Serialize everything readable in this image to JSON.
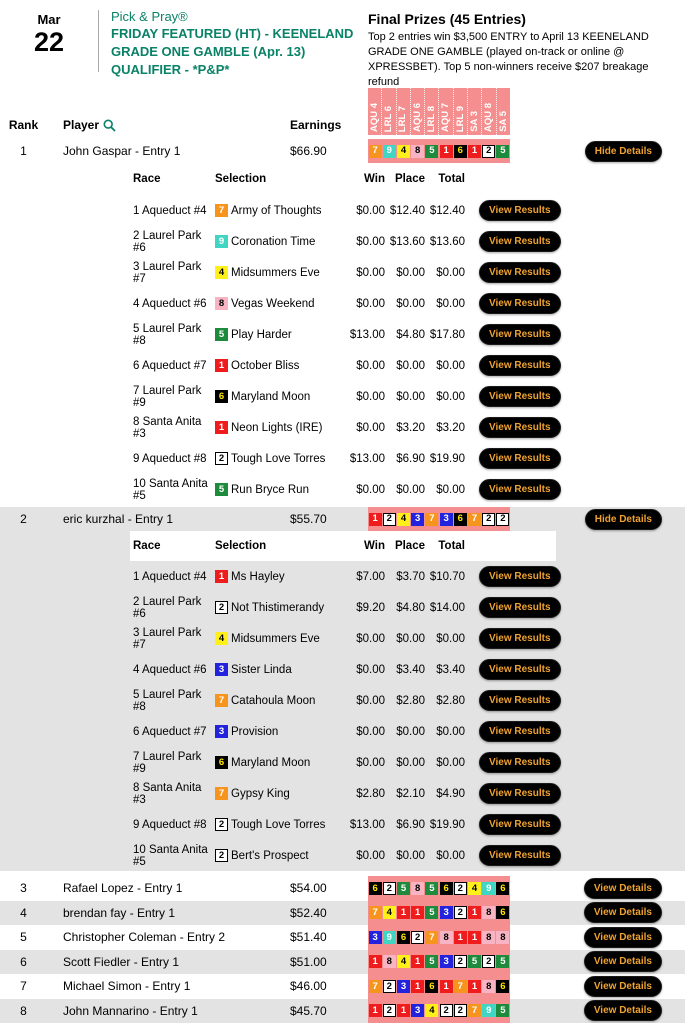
{
  "header": {
    "date_month": "Mar",
    "date_day": "22",
    "brand": "Pick & Pray®",
    "title": "FRIDAY FEATURED (HT) - KEENELAND GRADE ONE GAMBLE (Apr. 13) QUALIFIER - *P&P*",
    "prizes_title": "Final Prizes (45 Entries)",
    "prizes_desc": "Top 2 entries win $3,500 ENTRY to April 13 KEENELAND GRADE ONE GAMBLE (played on-track or online @ XPRESSBET). Top 5 non-winners receive $207 breakage refund"
  },
  "leaderboard": {
    "columns": {
      "rank": "Rank",
      "player": "Player",
      "earnings": "Earnings"
    },
    "tracks": [
      "AQU 4",
      "LRL 6",
      "LRL 7",
      "AQU 6",
      "LRL 8",
      "AQU 7",
      "LRL 9",
      "SA 3",
      "AQU 8",
      "SA 5"
    ],
    "detail_columns": {
      "race": "Race",
      "selection": "Selection",
      "win": "Win",
      "place": "Place",
      "total": "Total"
    },
    "buttons": {
      "hide_details": "Hide Details",
      "view_details": "View Details",
      "view_results": "View Results"
    },
    "entries": [
      {
        "rank": "1",
        "player": "John Gaspar - Entry 1",
        "earnings": "$66.90",
        "picks": [
          7,
          9,
          4,
          8,
          5,
          1,
          6,
          1,
          2,
          5
        ],
        "expanded": true,
        "races": [
          {
            "race": "1 Aqueduct #4",
            "num": 7,
            "horse": "Army of Thoughts",
            "win": "$0.00",
            "place": "$12.40",
            "total": "$12.40"
          },
          {
            "race": "2 Laurel Park #6",
            "num": 9,
            "horse": "Coronation Time",
            "win": "$0.00",
            "place": "$13.60",
            "total": "$13.60"
          },
          {
            "race": "3 Laurel Park #7",
            "num": 4,
            "horse": "Midsummers Eve",
            "win": "$0.00",
            "place": "$0.00",
            "total": "$0.00"
          },
          {
            "race": "4 Aqueduct #6",
            "num": 8,
            "horse": "Vegas Weekend",
            "win": "$0.00",
            "place": "$0.00",
            "total": "$0.00"
          },
          {
            "race": "5 Laurel Park #8",
            "num": 5,
            "horse": "Play Harder",
            "win": "$13.00",
            "place": "$4.80",
            "total": "$17.80"
          },
          {
            "race": "6 Aqueduct #7",
            "num": 1,
            "horse": "October Bliss",
            "win": "$0.00",
            "place": "$0.00",
            "total": "$0.00"
          },
          {
            "race": "7 Laurel Park #9",
            "num": 6,
            "horse": "Maryland Moon",
            "win": "$0.00",
            "place": "$0.00",
            "total": "$0.00"
          },
          {
            "race": "8 Santa Anita #3",
            "num": 1,
            "horse": "Neon Lights (IRE)",
            "win": "$0.00",
            "place": "$3.20",
            "total": "$3.20"
          },
          {
            "race": "9 Aqueduct #8",
            "num": 2,
            "horse": "Tough Love Torres",
            "win": "$13.00",
            "place": "$6.90",
            "total": "$19.90"
          },
          {
            "race": "10 Santa Anita #5",
            "num": 5,
            "horse": "Run Bryce Run",
            "win": "$0.00",
            "place": "$0.00",
            "total": "$0.00"
          }
        ]
      },
      {
        "rank": "2",
        "player": "eric kurzhal - Entry 1",
        "earnings": "$55.70",
        "picks": [
          1,
          2,
          4,
          3,
          7,
          3,
          6,
          7,
          2,
          2
        ],
        "expanded": true,
        "races": [
          {
            "race": "1 Aqueduct #4",
            "num": 1,
            "horse": "Ms Hayley",
            "win": "$7.00",
            "place": "$3.70",
            "total": "$10.70"
          },
          {
            "race": "2 Laurel Park #6",
            "num": 2,
            "horse": "Not Thistimerandy",
            "win": "$9.20",
            "place": "$4.80",
            "total": "$14.00"
          },
          {
            "race": "3 Laurel Park #7",
            "num": 4,
            "horse": "Midsummers Eve",
            "win": "$0.00",
            "place": "$0.00",
            "total": "$0.00"
          },
          {
            "race": "4 Aqueduct #6",
            "num": 3,
            "horse": "Sister Linda",
            "win": "$0.00",
            "place": "$3.40",
            "total": "$3.40"
          },
          {
            "race": "5 Laurel Park #8",
            "num": 7,
            "horse": "Catahoula Moon",
            "win": "$0.00",
            "place": "$2.80",
            "total": "$2.80"
          },
          {
            "race": "6 Aqueduct #7",
            "num": 3,
            "horse": "Provision",
            "win": "$0.00",
            "place": "$0.00",
            "total": "$0.00"
          },
          {
            "race": "7 Laurel Park #9",
            "num": 6,
            "horse": "Maryland Moon",
            "win": "$0.00",
            "place": "$0.00",
            "total": "$0.00"
          },
          {
            "race": "8 Santa Anita #3",
            "num": 7,
            "horse": "Gypsy King",
            "win": "$2.80",
            "place": "$2.10",
            "total": "$4.90"
          },
          {
            "race": "9 Aqueduct #8",
            "num": 2,
            "horse": "Tough Love Torres",
            "win": "$13.00",
            "place": "$6.90",
            "total": "$19.90"
          },
          {
            "race": "10 Santa Anita #5",
            "num": 2,
            "horse": "Bert's Prospect",
            "win": "$0.00",
            "place": "$0.00",
            "total": "$0.00"
          }
        ]
      },
      {
        "rank": "3",
        "player": "Rafael Lopez - Entry 1",
        "earnings": "$54.00",
        "picks": [
          6,
          2,
          5,
          8,
          5,
          6,
          2,
          4,
          9,
          6
        ],
        "expanded": false
      },
      {
        "rank": "4",
        "player": "brendan fay - Entry 1",
        "earnings": "$52.40",
        "picks": [
          7,
          4,
          1,
          1,
          5,
          3,
          2,
          1,
          8,
          6
        ],
        "expanded": false
      },
      {
        "rank": "5",
        "player": "Christopher Coleman - Entry 2",
        "earnings": "$51.40",
        "picks": [
          3,
          9,
          6,
          2,
          7,
          8,
          1,
          1,
          8,
          8
        ],
        "expanded": false
      },
      {
        "rank": "6",
        "player": "Scott Fiedler - Entry 1",
        "earnings": "$51.00",
        "picks": [
          1,
          8,
          4,
          1,
          5,
          3,
          2,
          5,
          2,
          5
        ],
        "expanded": false
      },
      {
        "rank": "7",
        "player": "Michael Simon - Entry 1",
        "earnings": "$46.00",
        "picks": [
          7,
          2,
          3,
          1,
          6,
          1,
          7,
          1,
          8,
          6
        ],
        "expanded": false
      },
      {
        "rank": "8",
        "player": "John Mannarino - Entry 1",
        "earnings": "$45.70",
        "picks": [
          1,
          2,
          1,
          3,
          4,
          2,
          2,
          7,
          9,
          5
        ],
        "expanded": false
      }
    ]
  },
  "colors": {
    "brand_green": "#0a8268",
    "salmon_band": "#f58f8f",
    "button_bg": "#000000",
    "button_gold": "#efa231",
    "alt_row_gray": "#e3e3e3",
    "saddlecloth": {
      "1": {
        "bg": "#ee1c1c",
        "fg": "#ffffff",
        "border": "none"
      },
      "2": {
        "bg": "#ffffff",
        "fg": "#000000",
        "border": "1px solid #000"
      },
      "3": {
        "bg": "#2323dd",
        "fg": "#ffffff",
        "border": "none"
      },
      "4": {
        "bg": "#fff01a",
        "fg": "#000000",
        "border": "none"
      },
      "5": {
        "bg": "#1e8a3c",
        "fg": "#ffffff",
        "border": "none"
      },
      "6": {
        "bg": "#000000",
        "fg": "#ffe800",
        "border": "none"
      },
      "7": {
        "bg": "#f7941e",
        "fg": "#ffffff",
        "border": "none"
      },
      "8": {
        "bg": "#f9b4c3",
        "fg": "#000000",
        "border": "none"
      },
      "9": {
        "bg": "#40d6c3",
        "fg": "#ffffff",
        "border": "none"
      }
    }
  }
}
